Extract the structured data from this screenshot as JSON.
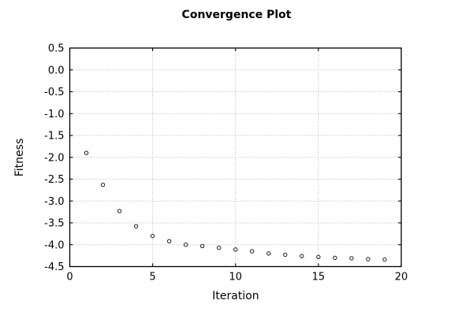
{
  "figure": {
    "background": "#ffffff",
    "text_color": "#000000",
    "grid_color": "#b5b5b5",
    "axis_color": "#000000",
    "marker_color": "#1a1a1a",
    "marker_fill": "#ffffff"
  },
  "chart_data": {
    "type": "scatter",
    "title": "Convergence Plot",
    "xlabel": "Iteration",
    "ylabel": "Fitness",
    "x": [
      1,
      2,
      3,
      4,
      5,
      6,
      7,
      8,
      9,
      10,
      11,
      12,
      13,
      14,
      15,
      16,
      17,
      18,
      19
    ],
    "y": [
      -1.9,
      -2.63,
      -3.23,
      -3.58,
      -3.8,
      -3.92,
      -4.0,
      -4.03,
      -4.07,
      -4.11,
      -4.15,
      -4.2,
      -4.23,
      -4.26,
      -4.28,
      -4.3,
      -4.31,
      -4.33,
      -4.34
    ],
    "xlim": [
      0,
      20
    ],
    "ylim": [
      -4.5,
      0.5
    ],
    "xticks": [
      0,
      5,
      10,
      15,
      20
    ],
    "xtick_labels": [
      "0",
      "5",
      "10",
      "15",
      "20"
    ],
    "yticks": [
      0.5,
      0.0,
      -0.5,
      -1.0,
      -1.5,
      -2.0,
      -2.5,
      -3.0,
      -3.5,
      -4.0,
      -4.5
    ],
    "ytick_labels": [
      "0.5",
      "0.0",
      "-0.5",
      "-1.0",
      "-1.5",
      "-2.0",
      "-2.5",
      "-3.0",
      "-3.5",
      "-4.0",
      "-4.5"
    ],
    "grid": true,
    "legend": "none",
    "marker": "open-circle"
  }
}
